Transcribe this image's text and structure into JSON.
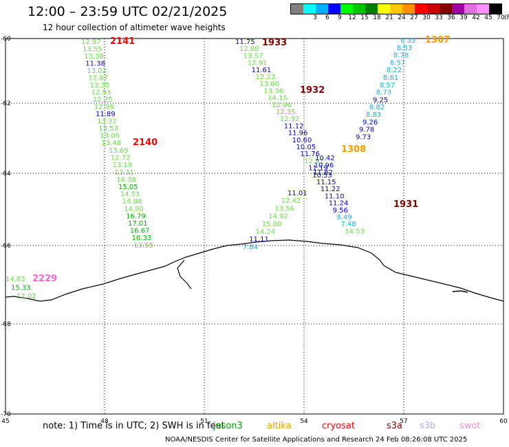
{
  "title": "12:00 – 23:59 UTC 02/21/2025",
  "subtitle": "12 hour collection of altimeter wave heights",
  "legend": {
    "unit": "(ft)",
    "bins": [
      {
        "label": "",
        "color": "#808080"
      },
      {
        "label": "3",
        "color": "#00ffff"
      },
      {
        "label": "6",
        "color": "#00b0ff"
      },
      {
        "label": "9",
        "color": "#0000ff"
      },
      {
        "label": "12",
        "color": "#00ff00"
      },
      {
        "label": "15",
        "color": "#00c800"
      },
      {
        "label": "18",
        "color": "#008000"
      },
      {
        "label": "21",
        "color": "#ffff00"
      },
      {
        "label": "24",
        "color": "#ffc800"
      },
      {
        "label": "27",
        "color": "#ff9000"
      },
      {
        "label": "30",
        "color": "#ff0000"
      },
      {
        "label": "33",
        "color": "#c80000"
      },
      {
        "label": "36",
        "color": "#800000"
      },
      {
        "label": "39",
        "color": "#a000a0"
      },
      {
        "label": "42",
        "color": "#e070e0"
      },
      {
        "label": "45",
        "color": "#ff90ff"
      },
      {
        "label": "70",
        "color": "#000000"
      }
    ]
  },
  "axes": {
    "lon_ticks": [
      "45",
      "48",
      "51",
      "54",
      "57",
      "60"
    ],
    "lat_ticks": [
      "-60",
      "-62",
      "-64",
      "-66",
      "-68",
      "-70"
    ]
  },
  "colors": {
    "light_green": "#66dd44",
    "dark_blue": "#0000cc",
    "cyan": "#22aadd",
    "red": "#ff0000",
    "dark_red": "#880000",
    "orange": "#ff9900",
    "magenta": "#ff66cc"
  },
  "passes": [
    {
      "id": "2141",
      "color": "#ff0000",
      "values": [
        {
          "v": "12.97",
          "c": "#66dd44"
        },
        {
          "v": "13.55",
          "c": "#66dd44"
        },
        {
          "v": "13.38",
          "c": "#66dd44"
        },
        {
          "v": "11.38",
          "c": "#0000cc"
        },
        {
          "v": "13.02",
          "c": "#66dd44"
        },
        {
          "v": "12.87",
          "c": "#66dd44"
        },
        {
          "v": "13.35",
          "c": "#66dd44"
        },
        {
          "v": "12.93",
          "c": "#66dd44"
        },
        {
          "v": "12.25",
          "c": "#66dd44"
        },
        {
          "v": "12.98",
          "c": "#66dd44"
        },
        {
          "v": "11.89",
          "c": "#0000cc"
        },
        {
          "v": "13.32",
          "c": "#66dd44"
        },
        {
          "v": "13.53",
          "c": "#66dd44"
        },
        {
          "v": "13.05",
          "c": "#66dd44"
        },
        {
          "v": "13.48",
          "c": "#66dd44"
        }
      ]
    },
    {
      "id": "2140",
      "color": "#ff0000",
      "values": [
        {
          "v": "13.69",
          "c": "#66dd44"
        },
        {
          "v": "12.72",
          "c": "#66dd44"
        },
        {
          "v": "13.19",
          "c": "#66dd44"
        },
        {
          "v": "13.31",
          "c": "#66dd44"
        },
        {
          "v": "14.38",
          "c": "#66dd44"
        },
        {
          "v": "15.05",
          "c": "#00b000"
        },
        {
          "v": "14.51",
          "c": "#66dd44"
        },
        {
          "v": "14.86",
          "c": "#66dd44"
        },
        {
          "v": "14.90",
          "c": "#66dd44"
        },
        {
          "v": "16.79",
          "c": "#00b000"
        },
        {
          "v": "17.01",
          "c": "#00b000"
        },
        {
          "v": "16.67",
          "c": "#00b000"
        },
        {
          "v": "16.33",
          "c": "#00b000"
        },
        {
          "v": "13.55",
          "c": "#66dd44"
        }
      ]
    },
    {
      "id": "1933",
      "color": "#880000",
      "values": [
        {
          "v": "11.75",
          "c": "#0000cc"
        },
        {
          "v": "12.88",
          "c": "#66dd44"
        },
        {
          "v": "13.57",
          "c": "#66dd44"
        },
        {
          "v": "12.91",
          "c": "#66dd44"
        },
        {
          "v": "11.61",
          "c": "#0000cc"
        },
        {
          "v": "12.23",
          "c": "#66dd44"
        },
        {
          "v": "13.60",
          "c": "#66dd44"
        },
        {
          "v": "13.36",
          "c": "#66dd44"
        },
        {
          "v": "14.15",
          "c": "#66dd44"
        },
        {
          "v": "12.96",
          "c": "#66dd44"
        },
        {
          "v": "12.35",
          "c": "#66dd44"
        },
        {
          "v": "12.92",
          "c": "#66dd44"
        },
        {
          "v": "11.12",
          "c": "#0000cc"
        },
        {
          "v": "11.96",
          "c": "#0000cc"
        },
        {
          "v": "10.60",
          "c": "#0000cc"
        },
        {
          "v": "10.05",
          "c": "#0000cc"
        },
        {
          "v": "11.76",
          "c": "#0000cc"
        },
        {
          "v": "12.91",
          "c": "#66dd44"
        },
        {
          "v": "11.19",
          "c": "#0000cc"
        },
        {
          "v": "10.53",
          "c": "#0000cc"
        },
        {
          "v": "11.15",
          "c": "#0000cc"
        },
        {
          "v": "11.22",
          "c": "#0000cc"
        },
        {
          "v": "11.10",
          "c": "#0000cc"
        },
        {
          "v": "11.24",
          "c": "#0000cc"
        },
        {
          "v": "9.56",
          "c": "#0000cc"
        },
        {
          "v": "8.49",
          "c": "#22aadd"
        },
        {
          "v": "7.48",
          "c": "#22aadd"
        },
        {
          "v": "14.53",
          "c": "#66dd44"
        }
      ]
    },
    {
      "id": "1307",
      "color": "#ff9900",
      "values": [
        {
          "v": "8.33",
          "c": "#22aadd"
        },
        {
          "v": "8.53",
          "c": "#22aadd"
        },
        {
          "v": "8.78",
          "c": "#22aadd"
        },
        {
          "v": "8.57",
          "c": "#22aadd"
        },
        {
          "v": "8.22",
          "c": "#22aadd"
        },
        {
          "v": "8.61",
          "c": "#22aadd"
        },
        {
          "v": "8.57",
          "c": "#22aadd"
        },
        {
          "v": "8.73",
          "c": "#22aadd"
        },
        {
          "v": "9.25",
          "c": "#0000cc"
        },
        {
          "v": "8.82",
          "c": "#22aadd"
        },
        {
          "v": "8.83",
          "c": "#22aadd"
        },
        {
          "v": "9.26",
          "c": "#0000cc"
        },
        {
          "v": "9.78",
          "c": "#0000cc"
        },
        {
          "v": "9.73",
          "c": "#0000cc"
        }
      ]
    },
    {
      "id": "1308",
      "color": "#ff9900",
      "values": [
        {
          "v": "10.42",
          "c": "#0000cc"
        },
        {
          "v": "10.96",
          "c": "#0000cc"
        },
        {
          "v": "11.82",
          "c": "#0000cc"
        }
      ]
    },
    {
      "id": "1932",
      "color": "#880000",
      "values": [
        {
          "v": "11.01",
          "c": "#0000cc"
        },
        {
          "v": "12.42",
          "c": "#66dd44"
        },
        {
          "v": "13.56",
          "c": "#66dd44"
        },
        {
          "v": "14.92",
          "c": "#66dd44"
        },
        {
          "v": "15.00",
          "c": "#66dd44"
        },
        {
          "v": "14.24",
          "c": "#66dd44"
        },
        {
          "v": "11.11",
          "c": "#0000cc"
        },
        {
          "v": "7.84",
          "c": "#22aadd"
        }
      ]
    },
    {
      "id": "1931",
      "color": "#880000",
      "values": []
    },
    {
      "id": "2229",
      "color": "#ff66cc",
      "values": [
        {
          "v": "14.83",
          "c": "#66dd44"
        },
        {
          "v": "15.33",
          "c": "#00b000"
        },
        {
          "v": "12.02",
          "c": "#66dd44"
        }
      ]
    }
  ],
  "note": "note: 1) Time is in UTC; 2) SWH is in feet",
  "satellites": [
    {
      "name": "jason3",
      "color": "#00a000"
    },
    {
      "name": "altika",
      "color": "#ff9900"
    },
    {
      "name": "cryosat",
      "color": "#ff0000"
    },
    {
      "name": "s3a",
      "color": "#880000"
    },
    {
      "name": "s3b",
      "color": "#b0b0ff"
    },
    {
      "name": "swot",
      "color": "#ff88dd"
    }
  ],
  "footer": "NOAA/NESDIS Center for Satellite Applications and Research    24 Feb 08:26:08 UTC 2025"
}
